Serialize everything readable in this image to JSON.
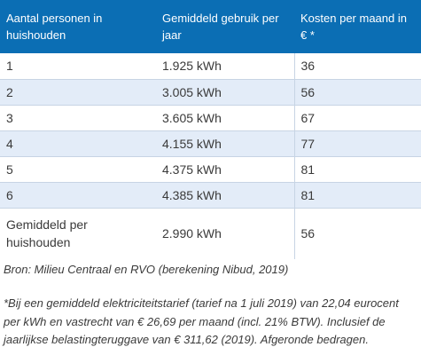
{
  "table": {
    "headers": [
      "Aantal personen in huishouden",
      "Gemiddeld gebruik per jaar",
      "Kosten per maand in € *"
    ],
    "rows": [
      {
        "personen": "1",
        "gebruik": "1.925 kWh",
        "kosten": "36"
      },
      {
        "personen": "2",
        "gebruik": "3.005 kWh",
        "kosten": "56"
      },
      {
        "personen": "3",
        "gebruik": "3.605 kWh",
        "kosten": "67"
      },
      {
        "personen": "4",
        "gebruik": "4.155 kWh",
        "kosten": "77"
      },
      {
        "personen": "5",
        "gebruik": "4.375 kWh",
        "kosten": "81"
      },
      {
        "personen": "6",
        "gebruik": "4.385 kWh",
        "kosten": "81"
      },
      {
        "personen": "Gemiddeld per huishouden",
        "gebruik": "2.990 kWh",
        "kosten": "56"
      }
    ]
  },
  "source": "Bron: Milieu Centraal en RVO (berekening Nibud, 2019)",
  "footnote": {
    "lines": [
      "*Bij een gemiddeld elektriciteitstarief (tarief na 1 juli 2019) van 22,04 eurocent",
      "per kWh en vastrecht van € 26,69 per maand (incl. 21% BTW). Inclusief de",
      "jaarlijkse belastingteruggave van € 311,62 (2019). Afgeronde bedragen."
    ]
  },
  "colors": {
    "header_bg": "#0b6eb4",
    "row_alt_bg": "#e3ecf8",
    "text": "#3a3a3a"
  }
}
